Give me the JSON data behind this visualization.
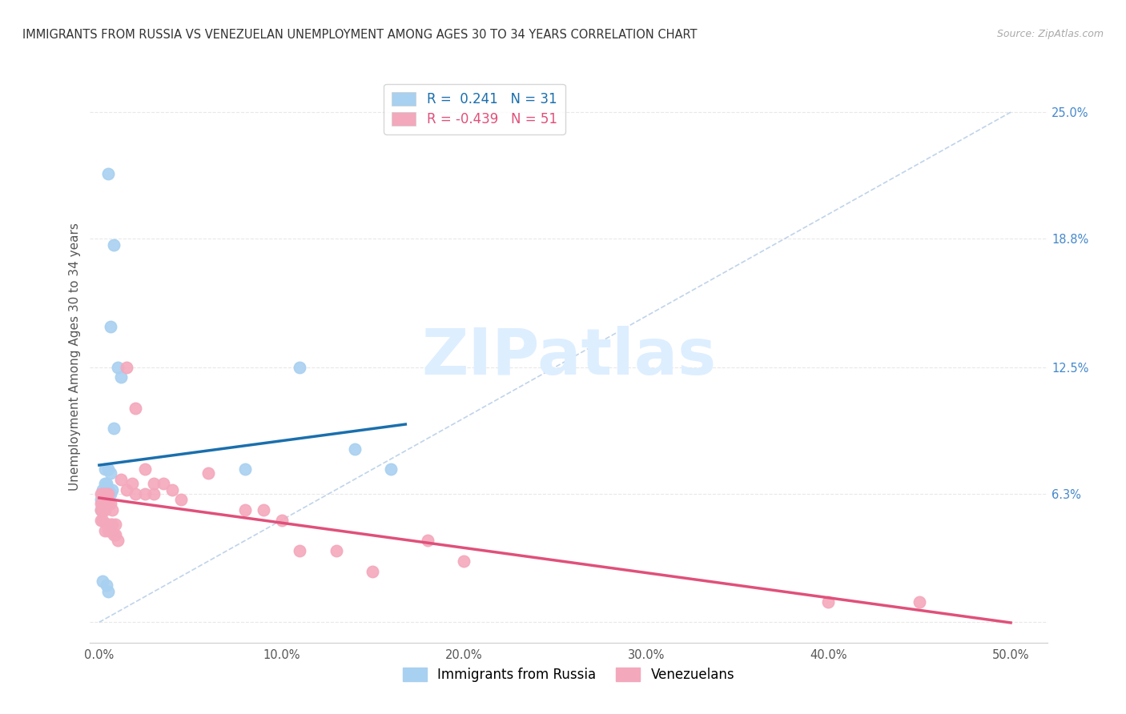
{
  "title": "IMMIGRANTS FROM RUSSIA VS VENEZUELAN UNEMPLOYMENT AMONG AGES 30 TO 34 YEARS CORRELATION CHART",
  "source": "Source: ZipAtlas.com",
  "ylabel": "Unemployment Among Ages 30 to 34 years",
  "x_ticks": [
    0,
    10,
    20,
    30,
    40,
    50
  ],
  "x_tick_labels": [
    "0.0%",
    "10.0%",
    "20.0%",
    "30.0%",
    "40.0%",
    "50.0%"
  ],
  "y_ticks": [
    0,
    6.3,
    12.5,
    18.8,
    25.0
  ],
  "y_tick_labels_right": [
    "",
    "6.3%",
    "12.5%",
    "18.8%",
    "25.0%"
  ],
  "xlim": [
    -0.5,
    52
  ],
  "ylim": [
    -1.0,
    27
  ],
  "legend_r1": "R =  0.241   N = 31",
  "legend_r2": "R = -0.439   N = 51",
  "legend_color1": "#a8d0f0",
  "legend_color2": "#f4a8bc",
  "legend_text_color1": "#1a6fad",
  "legend_text_color2": "#e0507a",
  "russia_points": [
    [
      0.5,
      22.0
    ],
    [
      0.8,
      18.5
    ],
    [
      0.6,
      14.5
    ],
    [
      1.0,
      12.5
    ],
    [
      1.2,
      12.0
    ],
    [
      0.8,
      9.5
    ],
    [
      0.3,
      7.5
    ],
    [
      0.5,
      7.5
    ],
    [
      0.6,
      7.3
    ],
    [
      0.4,
      6.8
    ],
    [
      0.3,
      6.8
    ],
    [
      0.2,
      6.5
    ],
    [
      0.4,
      6.5
    ],
    [
      0.5,
      6.5
    ],
    [
      0.7,
      6.5
    ],
    [
      0.2,
      6.3
    ],
    [
      0.3,
      6.3
    ],
    [
      0.4,
      6.3
    ],
    [
      0.6,
      6.3
    ],
    [
      0.1,
      6.0
    ],
    [
      0.2,
      5.8
    ],
    [
      0.3,
      5.8
    ],
    [
      0.1,
      5.5
    ],
    [
      0.2,
      5.5
    ],
    [
      0.2,
      2.0
    ],
    [
      0.4,
      1.8
    ],
    [
      0.5,
      1.5
    ],
    [
      8.0,
      7.5
    ],
    [
      11.0,
      12.5
    ],
    [
      14.0,
      8.5
    ],
    [
      16.0,
      7.5
    ]
  ],
  "venezuela_points": [
    [
      0.1,
      6.3
    ],
    [
      0.2,
      6.3
    ],
    [
      0.3,
      6.3
    ],
    [
      0.4,
      6.3
    ],
    [
      0.5,
      6.3
    ],
    [
      0.1,
      5.8
    ],
    [
      0.2,
      5.8
    ],
    [
      0.3,
      5.8
    ],
    [
      0.4,
      5.8
    ],
    [
      0.5,
      5.8
    ],
    [
      0.6,
      5.8
    ],
    [
      0.1,
      5.5
    ],
    [
      0.2,
      5.5
    ],
    [
      0.3,
      5.5
    ],
    [
      0.7,
      5.5
    ],
    [
      0.1,
      5.0
    ],
    [
      0.2,
      5.0
    ],
    [
      0.4,
      4.8
    ],
    [
      0.5,
      4.8
    ],
    [
      0.6,
      4.8
    ],
    [
      0.7,
      4.8
    ],
    [
      0.9,
      4.8
    ],
    [
      0.3,
      4.5
    ],
    [
      0.5,
      4.5
    ],
    [
      0.8,
      4.3
    ],
    [
      0.9,
      4.3
    ],
    [
      1.0,
      4.0
    ],
    [
      1.2,
      7.0
    ],
    [
      1.5,
      6.5
    ],
    [
      1.8,
      6.8
    ],
    [
      2.0,
      6.3
    ],
    [
      2.5,
      6.3
    ],
    [
      3.0,
      6.3
    ],
    [
      1.5,
      12.5
    ],
    [
      2.0,
      10.5
    ],
    [
      2.5,
      7.5
    ],
    [
      3.0,
      6.8
    ],
    [
      3.5,
      6.8
    ],
    [
      4.0,
      6.5
    ],
    [
      4.5,
      6.0
    ],
    [
      6.0,
      7.3
    ],
    [
      8.0,
      5.5
    ],
    [
      9.0,
      5.5
    ],
    [
      10.0,
      5.0
    ],
    [
      11.0,
      3.5
    ],
    [
      13.0,
      3.5
    ],
    [
      15.0,
      2.5
    ],
    [
      18.0,
      4.0
    ],
    [
      20.0,
      3.0
    ],
    [
      40.0,
      1.0
    ],
    [
      45.0,
      1.0
    ]
  ],
  "russia_line_color": "#1a6fad",
  "venezuela_line_color": "#e0507a",
  "russia_dot_color": "#a8d0f0",
  "venezuela_dot_color": "#f4a8bc",
  "diagonal_line_color": "#b8cfe8",
  "background_color": "#ffffff",
  "watermark_text": "ZIPatlas",
  "watermark_color": "#ddeeff",
  "grid_color": "#e8e8e8"
}
